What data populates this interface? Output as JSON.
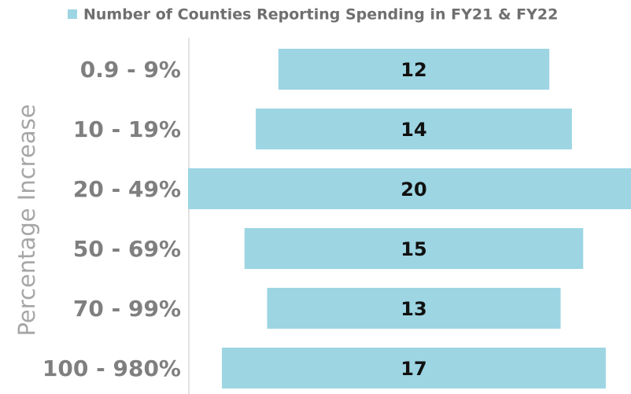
{
  "chart_data": {
    "type": "bar",
    "orientation": "horizontal-centered",
    "legend": "Number of Counties Reporting Spending in FY21 & FY22",
    "y_label": "Percentage Increase",
    "categories": [
      "0.9 - 9%",
      "10 - 19%",
      "20 - 49%",
      "50 - 69%",
      "70 - 99%",
      "100 - 980%"
    ],
    "values": [
      12,
      14,
      20,
      15,
      13,
      17
    ],
    "color": "#9dd5e3"
  }
}
